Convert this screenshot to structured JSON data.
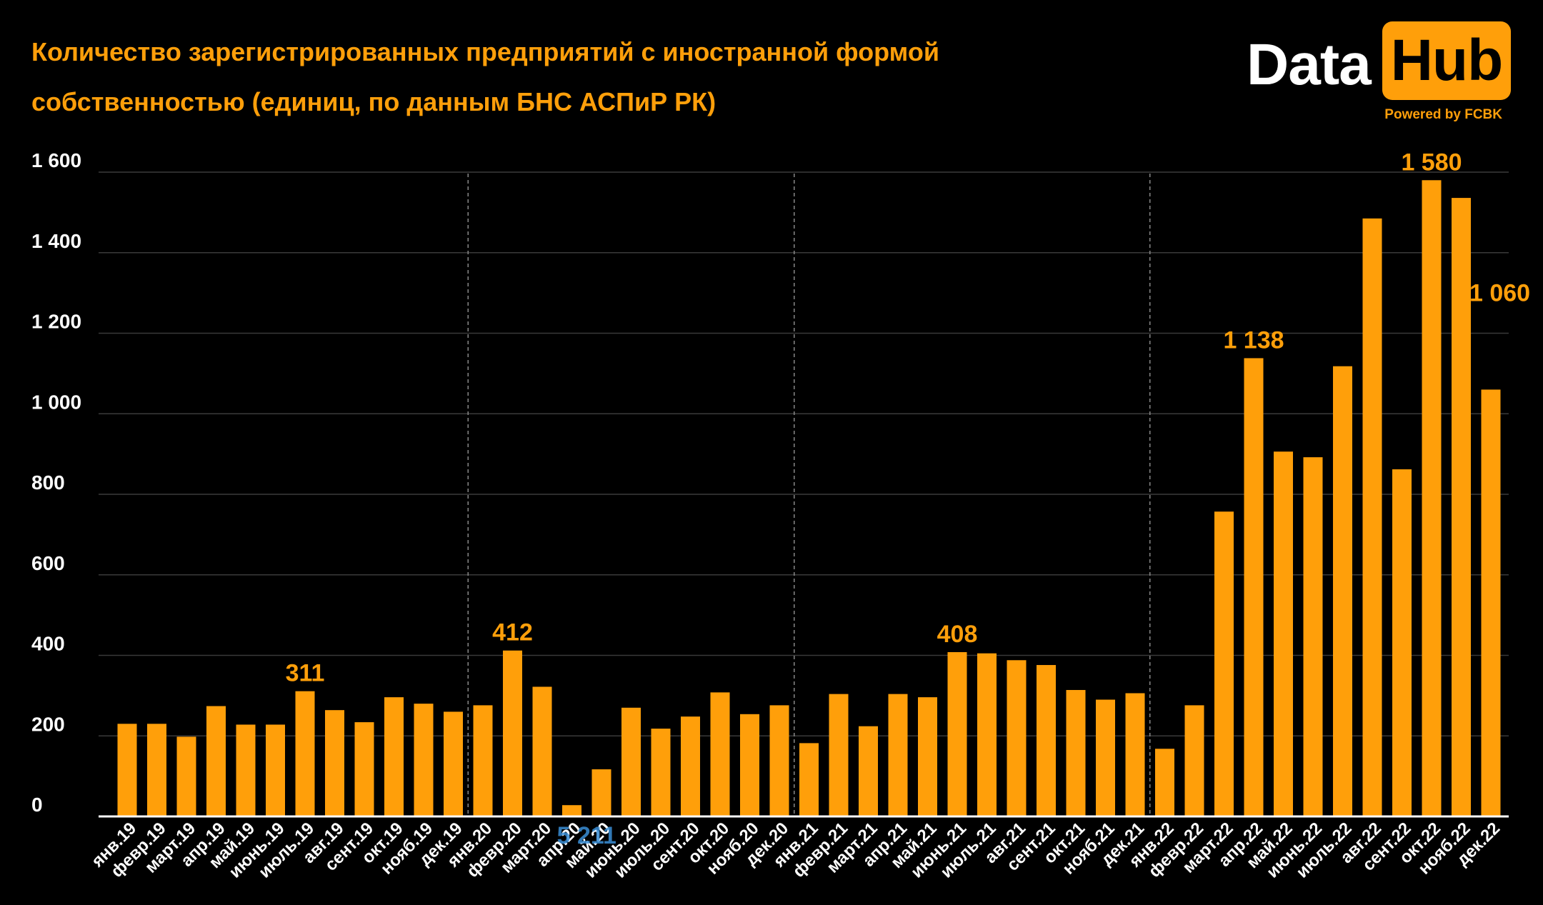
{
  "title_line1": "Количество зарегистрированных предприятий с иностранной формой",
  "title_line2": "собственностью (единиц, по данным БНС АСПиР РК)",
  "logo": {
    "data_word": "Data",
    "hub_word": "Hub",
    "powered": "Powered by FCBK"
  },
  "colors": {
    "bar": "#ff9f0a",
    "label": "#ff9f0a",
    "axis_text": "#ffffff",
    "grid": "#3a3a3a",
    "separator": "#888888",
    "background": "#000000"
  },
  "chart_data": {
    "type": "bar",
    "ylim": [
      0,
      1600
    ],
    "yticks": [
      {
        "value": 0,
        "label": "0"
      },
      {
        "value": 200,
        "label": "200"
      },
      {
        "value": 400,
        "label": "400"
      },
      {
        "value": 600,
        "label": "600"
      },
      {
        "value": 800,
        "label": "800"
      },
      {
        "value": 1000,
        "label": "1 000"
      },
      {
        "value": 1200,
        "label": "1 200"
      },
      {
        "value": 1400,
        "label": "1 400"
      },
      {
        "value": 1600,
        "label": "1 600"
      }
    ],
    "grid": true,
    "categories": [
      "янв.19",
      "февр.19",
      "март.19",
      "апр.19",
      "май.19",
      "июнь.19",
      "июль.19",
      "авг.19",
      "сент.19",
      "окт.19",
      "нояб.19",
      "дек.19",
      "янв.20",
      "февр.20",
      "март.20",
      "апр.20",
      "май.20",
      "июнь.20",
      "июль.20",
      "сент.20",
      "окт.20",
      "нояб.20",
      "дек.20",
      "янв.21",
      "февр.21",
      "март.21",
      "апр.21",
      "май.21",
      "июнь.21",
      "июль.21",
      "авг.21",
      "сент.21",
      "окт.21",
      "нояб.21",
      "дек.21",
      "янв.22",
      "февр.22",
      "март.22",
      "апр.22",
      "май.22",
      "июнь.22",
      "июль.22",
      "авг.22",
      "сент.22",
      "окт.22",
      "нояб.22",
      "дек.22"
    ],
    "values": [
      230,
      230,
      198,
      274,
      228,
      228,
      311,
      264,
      234,
      296,
      280,
      260,
      276,
      412,
      322,
      28,
      117,
      270,
      218,
      248,
      308,
      254,
      276,
      182,
      304,
      224,
      304,
      296,
      408,
      405,
      388,
      376,
      314,
      290,
      306,
      168,
      276,
      757,
      1138,
      906,
      892,
      1118,
      1485,
      862,
      1580,
      1536,
      1060
    ],
    "data_labels": [
      {
        "index": 6,
        "text": "311"
      },
      {
        "index": 13,
        "text": "412"
      },
      {
        "index": 28,
        "text": "408"
      },
      {
        "index": 38,
        "text": "1 138"
      },
      {
        "index": 44,
        "text": "1 580"
      },
      {
        "index": 46,
        "text": "1 060"
      }
    ],
    "overlap_label": "5 211",
    "year_separators_after_index": [
      11,
      22,
      34
    ]
  }
}
